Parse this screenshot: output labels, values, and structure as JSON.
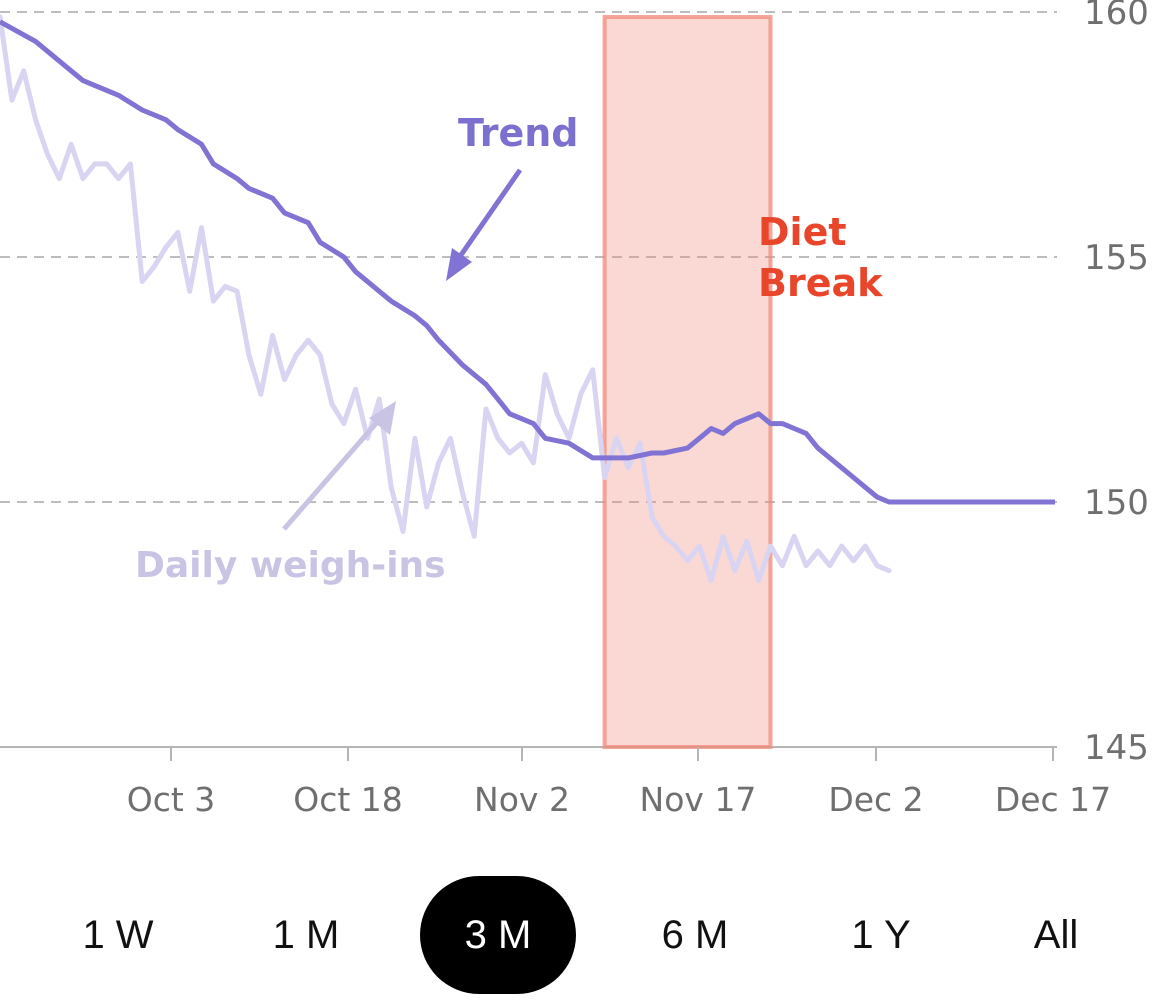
{
  "chart_data": {
    "type": "line",
    "y_axis": {
      "ylim": [
        145,
        160
      ],
      "ticks": [
        "160",
        "155",
        "150",
        "145"
      ],
      "position": "right"
    },
    "x_axis": {
      "ticks": [
        "Oct 3",
        "Oct 18",
        "Nov 2",
        "Nov 17",
        "Dec 2",
        "Dec 17"
      ]
    },
    "grid": true,
    "series": [
      {
        "name": "Trend",
        "color": "#8073d3",
        "x": [
          0,
          3,
          4,
          6,
          7,
          10,
          12,
          14,
          15,
          17,
          18,
          20,
          21,
          23,
          24,
          26,
          27,
          29,
          30,
          32,
          33,
          35,
          36,
          37,
          39,
          41,
          42,
          43,
          45,
          46,
          48,
          50,
          52,
          53,
          55,
          56,
          58,
          59,
          60,
          61,
          62,
          63,
          64,
          65,
          66,
          67,
          68,
          69,
          70,
          71,
          72,
          73,
          74,
          75,
          76,
          77,
          78,
          79,
          80,
          81,
          82,
          83,
          84,
          85,
          86,
          87,
          88,
          89
        ],
        "values": [
          159.8,
          159.4,
          159.2,
          158.8,
          158.6,
          158.3,
          158.0,
          157.8,
          157.6,
          157.3,
          156.9,
          156.6,
          156.4,
          156.2,
          155.9,
          155.7,
          155.3,
          155.0,
          154.7,
          154.3,
          154.1,
          153.8,
          153.6,
          153.3,
          152.8,
          152.4,
          152.1,
          151.8,
          151.6,
          151.3,
          151.2,
          150.9,
          150.9,
          150.9,
          151.0,
          151.0,
          151.1,
          151.3,
          151.5,
          151.4,
          151.6,
          151.7,
          151.8,
          151.6,
          151.6,
          151.5,
          151.4,
          151.1,
          150.9,
          150.7,
          150.5,
          150.3,
          150.1,
          150.0,
          150.0,
          150.0,
          150.0,
          150.0,
          150.0,
          150.0,
          150.0,
          150.0,
          150.0,
          150.0,
          150.0,
          150.0,
          150.0,
          150.0
        ]
      },
      {
        "name": "Daily weigh-ins",
        "color": "#d9d4f1",
        "x": [
          0,
          1,
          2,
          3,
          4,
          5,
          6,
          7,
          8,
          9,
          10,
          11,
          12,
          13,
          14,
          15,
          16,
          17,
          18,
          19,
          20,
          21,
          22,
          23,
          24,
          25,
          26,
          27,
          28,
          29,
          30,
          31,
          32,
          33,
          34,
          35,
          36,
          37,
          38,
          39,
          40,
          41,
          42,
          43,
          44,
          45,
          46,
          47,
          48,
          49,
          50,
          51,
          52,
          53,
          54,
          55,
          56,
          57,
          58,
          59,
          60,
          61,
          62,
          63,
          64,
          65,
          66,
          67,
          68,
          69,
          70,
          71,
          72,
          73,
          74,
          75
        ],
        "values": [
          159.9,
          158.2,
          158.8,
          157.8,
          157.1,
          156.6,
          157.3,
          156.6,
          156.9,
          156.9,
          156.6,
          156.9,
          154.5,
          154.8,
          155.2,
          155.5,
          154.3,
          155.6,
          154.1,
          154.4,
          154.3,
          153.0,
          152.2,
          153.4,
          152.5,
          153.0,
          153.3,
          153.0,
          152.0,
          151.6,
          152.3,
          151.3,
          152.1,
          150.3,
          149.4,
          151.3,
          149.9,
          150.8,
          151.3,
          150.2,
          149.3,
          151.9,
          151.3,
          151.0,
          151.2,
          150.8,
          152.6,
          151.8,
          151.3,
          152.2,
          152.7,
          150.5,
          151.3,
          150.7,
          151.2,
          149.7,
          149.3,
          149.1,
          148.8,
          149.1,
          148.4,
          149.3,
          148.6,
          149.2,
          148.4,
          149.1,
          148.7,
          149.3,
          148.7,
          149.0,
          148.7,
          149.1,
          148.8,
          149.1,
          148.7,
          148.6
        ]
      }
    ],
    "highlight_band": {
      "label": [
        "Diet",
        "Break"
      ],
      "x_start": 51,
      "x_end": 65,
      "color": "#f08a7a"
    },
    "annotations": {
      "trend": "Trend",
      "daily": "Daily weigh-ins",
      "break_line1": "Diet",
      "break_line2": "Break"
    }
  },
  "range_selector": {
    "options": [
      {
        "label": "1 W"
      },
      {
        "label": "1 M"
      },
      {
        "label": "3 M",
        "active": true
      },
      {
        "label": "6 M"
      },
      {
        "label": "1 Y"
      },
      {
        "label": "All"
      }
    ]
  }
}
